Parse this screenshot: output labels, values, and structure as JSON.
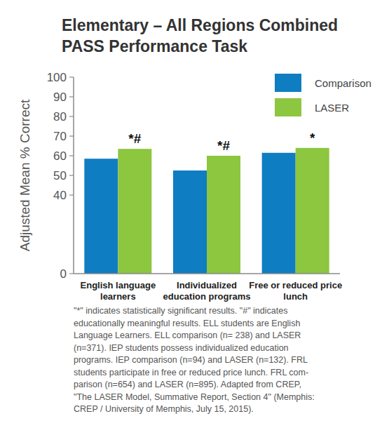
{
  "chart_data": {
    "type": "bar",
    "title": "Elementary – All Regions Combined",
    "subtitle": "PASS Performance Task",
    "y_label": "Adjusted Mean % Correct",
    "categories": [
      "English language learners",
      "Individualized education programs",
      "Free or reduced price lunch"
    ],
    "series": [
      {
        "name": "Comparison",
        "color": "#0f7dc2",
        "values": [
          58.5,
          52.5,
          61.5
        ]
      },
      {
        "name": "LASER",
        "color": "#8dc63f",
        "values": [
          63.5,
          60,
          64
        ],
        "annotations": [
          "*#",
          "*#",
          "*"
        ]
      }
    ],
    "ylim": [
      0,
      100
    ],
    "yticks": [
      0,
      40,
      50,
      60,
      70,
      80,
      90,
      100
    ],
    "grid": false,
    "legend": "top-right",
    "footnote": [
      "\"*\" indicates statistically significant results. \"#\" indicates",
      "educationally meaningful results. ELL students are English",
      "Language Learners. ELL comparison (n= 238) and LASER",
      "(n=371). IEP students possess individualized education",
      "programs. IEP comparison (n=94) and LASER (n=132). FRL",
      "students participate in free or reduced price lunch. FRL com-",
      "parison (n=654) and LASER (n=895). Adapted from CREP,",
      "\"The LASER Model, Summative Report, Section 4\" (Memphis:",
      "CREP / University of Memphis, July 15, 2015)."
    ]
  }
}
